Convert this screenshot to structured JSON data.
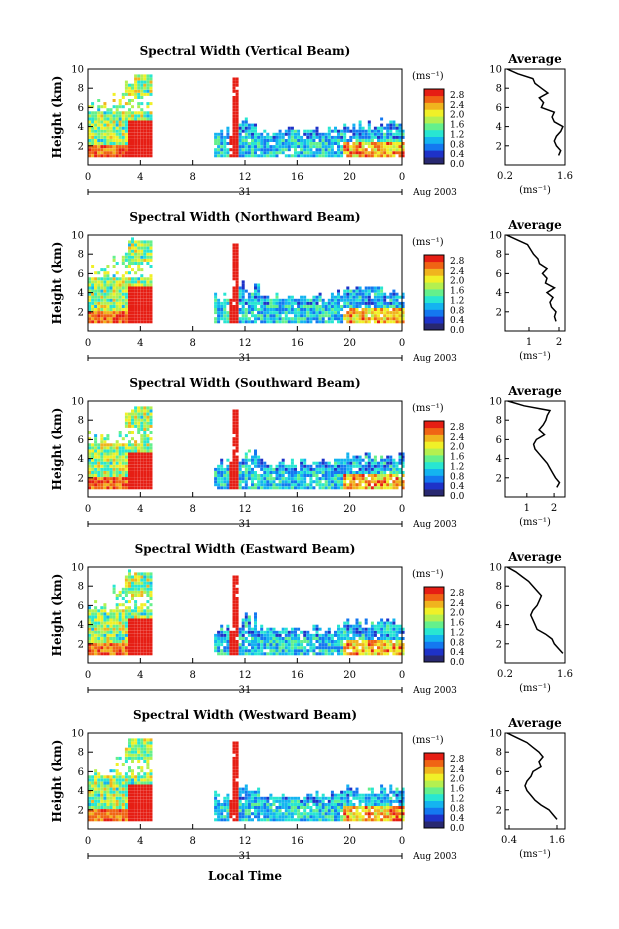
{
  "chart_data": {
    "type": "heatmap",
    "xlabel": "Local Time",
    "x_ticks": [
      "0",
      "4",
      "8",
      "12",
      "16",
      "20",
      "0"
    ],
    "date_label": "31",
    "month_label": "Aug 2003",
    "ylabel": "Height (km)",
    "y_ticks": [
      "2",
      "4",
      "6",
      "8",
      "10"
    ],
    "ylim": [
      0,
      10
    ],
    "xlim": [
      0,
      24
    ],
    "colorbar": {
      "unit": "(ms⁻¹)",
      "ticks": [
        "0.0",
        "0.4",
        "0.8",
        "1.2",
        "1.6",
        "2.0",
        "2.4",
        "2.8"
      ],
      "colors": [
        "#282870",
        "#1e32c8",
        "#1478f0",
        "#14b4f0",
        "#28e6d2",
        "#64f08c",
        "#b4f050",
        "#f0f028",
        "#f0b41e",
        "#f06414",
        "#e61e14"
      ]
    },
    "average_axis_title": "Average",
    "average_unit": "(ms⁻¹)",
    "panels": [
      {
        "title": "Spectral Width (Vertical Beam)",
        "avg_ticks": [
          "0.2",
          "1.6"
        ],
        "avg_xlim": [
          0.2,
          1.6
        ],
        "avg_profile": [
          [
            1.45,
            1
          ],
          [
            1.5,
            1.5
          ],
          [
            1.4,
            2
          ],
          [
            1.35,
            2.5
          ],
          [
            1.4,
            3
          ],
          [
            1.5,
            3.5
          ],
          [
            1.55,
            4
          ],
          [
            1.35,
            4.5
          ],
          [
            1.3,
            5
          ],
          [
            1.35,
            5.5
          ],
          [
            1.05,
            6
          ],
          [
            1.1,
            6.5
          ],
          [
            1.0,
            7
          ],
          [
            1.2,
            7.5
          ],
          [
            1.05,
            8
          ],
          [
            0.9,
            8.5
          ],
          [
            0.85,
            9
          ],
          [
            0.5,
            9.5
          ],
          [
            0.25,
            10
          ]
        ]
      },
      {
        "title": "Spectral Width (Northward Beam)",
        "avg_ticks": [
          "1",
          "2"
        ],
        "avg_xlim": [
          0.2,
          2.2
        ],
        "avg_profile": [
          [
            1.9,
            1
          ],
          [
            1.85,
            1.5
          ],
          [
            1.9,
            2
          ],
          [
            1.75,
            2.5
          ],
          [
            1.7,
            3
          ],
          [
            1.8,
            3.5
          ],
          [
            1.6,
            4
          ],
          [
            1.85,
            4.5
          ],
          [
            1.55,
            5
          ],
          [
            1.6,
            5.5
          ],
          [
            1.45,
            6
          ],
          [
            1.6,
            6.5
          ],
          [
            1.35,
            7
          ],
          [
            1.3,
            7.5
          ],
          [
            1.15,
            8
          ],
          [
            1.05,
            8.5
          ],
          [
            0.95,
            9
          ],
          [
            0.6,
            9.5
          ],
          [
            0.25,
            10
          ]
        ]
      },
      {
        "title": "Spectral Width (Southward Beam)",
        "avg_ticks": [
          "1",
          "2"
        ],
        "avg_xlim": [
          0.2,
          2.4
        ],
        "avg_profile": [
          [
            2.1,
            1
          ],
          [
            2.2,
            1.5
          ],
          [
            2.05,
            2
          ],
          [
            1.95,
            2.5
          ],
          [
            1.85,
            3
          ],
          [
            1.75,
            3.5
          ],
          [
            1.6,
            4
          ],
          [
            1.45,
            4.5
          ],
          [
            1.3,
            5
          ],
          [
            1.25,
            5.5
          ],
          [
            1.35,
            6
          ],
          [
            1.65,
            6.5
          ],
          [
            1.45,
            7
          ],
          [
            1.6,
            7.5
          ],
          [
            1.7,
            8
          ],
          [
            1.75,
            8.5
          ],
          [
            1.85,
            9
          ],
          [
            0.9,
            9.5
          ],
          [
            0.3,
            10
          ]
        ]
      },
      {
        "title": "Spectral Width (Eastward Beam)",
        "avg_ticks": [
          "0.2",
          "1.6"
        ],
        "avg_xlim": [
          0.2,
          1.6
        ],
        "avg_profile": [
          [
            1.55,
            1
          ],
          [
            1.45,
            1.5
          ],
          [
            1.35,
            2
          ],
          [
            1.3,
            2.5
          ],
          [
            1.15,
            3
          ],
          [
            0.95,
            3.5
          ],
          [
            0.9,
            4
          ],
          [
            0.85,
            4.5
          ],
          [
            0.8,
            5
          ],
          [
            0.85,
            5.5
          ],
          [
            0.95,
            6
          ],
          [
            1.0,
            6.5
          ],
          [
            1.05,
            7
          ],
          [
            0.95,
            7.5
          ],
          [
            0.85,
            8
          ],
          [
            0.75,
            8.5
          ],
          [
            0.6,
            9
          ],
          [
            0.45,
            9.5
          ],
          [
            0.25,
            10
          ]
        ]
      },
      {
        "title": "Spectral Width (Westward Beam)",
        "avg_ticks": [
          "0.4",
          "1.6"
        ],
        "avg_xlim": [
          0.3,
          1.8
        ],
        "avg_profile": [
          [
            1.6,
            1
          ],
          [
            1.5,
            1.5
          ],
          [
            1.4,
            2
          ],
          [
            1.2,
            2.5
          ],
          [
            1.05,
            3
          ],
          [
            0.95,
            3.5
          ],
          [
            0.85,
            4
          ],
          [
            0.8,
            4.5
          ],
          [
            0.85,
            5
          ],
          [
            0.95,
            5.5
          ],
          [
            1.0,
            6
          ],
          [
            1.2,
            6.5
          ],
          [
            1.15,
            7
          ],
          [
            1.25,
            7.5
          ],
          [
            1.15,
            8
          ],
          [
            1.0,
            8.5
          ],
          [
            0.85,
            9
          ],
          [
            0.6,
            9.5
          ],
          [
            0.35,
            10
          ]
        ]
      }
    ]
  }
}
